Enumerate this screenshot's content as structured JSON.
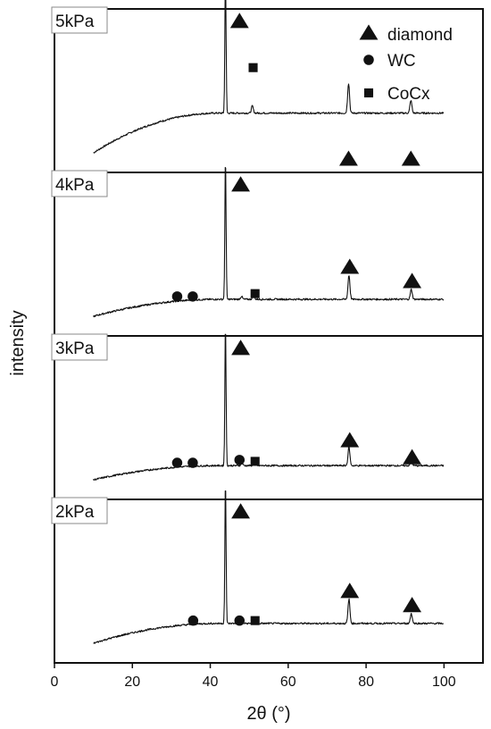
{
  "chart_data": {
    "type": "line",
    "xlabel": "2θ (°)",
    "ylabel": "intensity",
    "xlim": [
      0,
      110
    ],
    "xticks": [
      0,
      20,
      40,
      60,
      80,
      100
    ],
    "x_range": [
      10,
      100
    ],
    "legend": {
      "placement": "top-right",
      "entries": [
        {
          "marker": "triangle",
          "label": "diamond"
        },
        {
          "marker": "circle",
          "label": "WC"
        },
        {
          "marker": "square",
          "label": "CoCx"
        }
      ]
    },
    "panels": [
      {
        "label": "5kPa",
        "background": {
          "start": 0.1,
          "plateau": 0.38
        },
        "peaks": [
          {
            "x": 43.9,
            "height": 1.0
          },
          {
            "x": 50.8,
            "height": 0.05
          },
          {
            "x": 75.5,
            "height": 0.21
          },
          {
            "x": 91.5,
            "height": 0.09
          }
        ],
        "markers": [
          {
            "type": "triangle",
            "x": 47.5,
            "y": 1.02
          },
          {
            "type": "square",
            "x": 51.0,
            "y": 0.7
          },
          {
            "type": "triangle",
            "x": 75.5,
            "y": 0.05
          },
          {
            "type": "triangle",
            "x": 91.5,
            "y": 0.05
          }
        ]
      },
      {
        "label": "4kPa",
        "background": {
          "start": 0.1,
          "plateau": 0.22
        },
        "peaks": [
          {
            "x": 35.7,
            "height": 0.02
          },
          {
            "x": 43.9,
            "height": 1.0
          },
          {
            "x": 48.0,
            "height": 0.02
          },
          {
            "x": 51.1,
            "height": 0.03
          },
          {
            "x": 75.6,
            "height": 0.17
          },
          {
            "x": 91.6,
            "height": 0.07
          }
        ],
        "markers": [
          {
            "type": "triangle",
            "x": 47.8,
            "y": 1.02
          },
          {
            "type": "circle",
            "x": 31.5,
            "y": 0.24
          },
          {
            "type": "circle",
            "x": 35.5,
            "y": 0.24
          },
          {
            "type": "square",
            "x": 51.5,
            "y": 0.26
          },
          {
            "type": "triangle",
            "x": 75.8,
            "y": 0.44
          },
          {
            "type": "triangle",
            "x": 91.8,
            "y": 0.34
          }
        ]
      },
      {
        "label": "3kPa",
        "background": {
          "start": 0.1,
          "plateau": 0.2
        },
        "peaks": [
          {
            "x": 31.5,
            "height": 0.02
          },
          {
            "x": 35.6,
            "height": 0.03
          },
          {
            "x": 43.9,
            "height": 1.0
          },
          {
            "x": 48.1,
            "height": 0.02
          },
          {
            "x": 51.3,
            "height": 0.02
          },
          {
            "x": 75.6,
            "height": 0.13
          },
          {
            "x": 91.6,
            "height": 0.05
          }
        ],
        "markers": [
          {
            "type": "triangle",
            "x": 47.8,
            "y": 1.02
          },
          {
            "type": "circle",
            "x": 31.5,
            "y": 0.22
          },
          {
            "type": "circle",
            "x": 35.5,
            "y": 0.22
          },
          {
            "type": "circle",
            "x": 47.5,
            "y": 0.24
          },
          {
            "type": "square",
            "x": 51.5,
            "y": 0.23
          },
          {
            "type": "triangle",
            "x": 75.8,
            "y": 0.37
          },
          {
            "type": "triangle",
            "x": 91.8,
            "y": 0.25
          }
        ]
      },
      {
        "label": "2kPa",
        "background": {
          "start": 0.1,
          "plateau": 0.24
        },
        "peaks": [
          {
            "x": 35.6,
            "height": 0.02
          },
          {
            "x": 43.9,
            "height": 1.0
          },
          {
            "x": 48.0,
            "height": 0.02
          },
          {
            "x": 51.3,
            "height": 0.02
          },
          {
            "x": 75.6,
            "height": 0.17
          },
          {
            "x": 91.6,
            "height": 0.07
          }
        ],
        "markers": [
          {
            "type": "triangle",
            "x": 47.8,
            "y": 1.02
          },
          {
            "type": "circle",
            "x": 35.6,
            "y": 0.26
          },
          {
            "type": "circle",
            "x": 47.5,
            "y": 0.26
          },
          {
            "type": "square",
            "x": 51.5,
            "y": 0.26
          },
          {
            "type": "triangle",
            "x": 75.8,
            "y": 0.46
          },
          {
            "type": "triangle",
            "x": 91.8,
            "y": 0.36
          }
        ]
      }
    ]
  }
}
